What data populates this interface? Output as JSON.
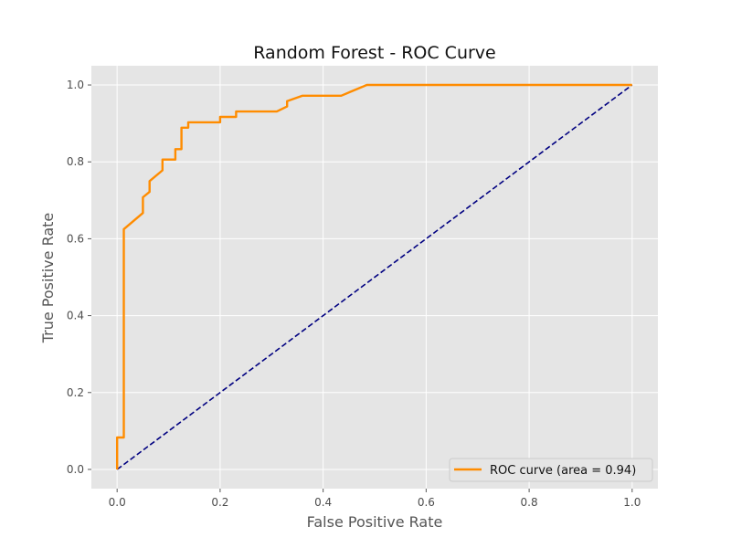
{
  "chart_data": {
    "type": "line",
    "title": "Random Forest - ROC Curve",
    "xlabel": "False Positive Rate",
    "ylabel": "True Positive Rate",
    "xlim": [
      -0.05,
      1.05
    ],
    "ylim": [
      -0.05,
      1.05
    ],
    "x_ticks": [
      "0.0",
      "0.2",
      "0.4",
      "0.6",
      "0.8",
      "1.0"
    ],
    "y_ticks": [
      "0.0",
      "0.2",
      "0.4",
      "0.6",
      "0.8",
      "1.0"
    ],
    "grid": true,
    "legend_position": "lower-right",
    "series": [
      {
        "name": "ROC curve (area = 0.94)",
        "color": "#ff8c00",
        "style": "solid",
        "x": [
          0.0,
          0.0,
          0.013,
          0.013,
          0.05,
          0.05,
          0.063,
          0.063,
          0.088,
          0.088,
          0.113,
          0.113,
          0.125,
          0.125,
          0.138,
          0.138,
          0.2,
          0.2,
          0.231,
          0.231,
          0.31,
          0.33,
          0.33,
          0.36,
          0.435,
          0.485,
          1.0
        ],
        "y": [
          0.0,
          0.083,
          0.083,
          0.625,
          0.667,
          0.708,
          0.722,
          0.75,
          0.778,
          0.806,
          0.806,
          0.833,
          0.833,
          0.889,
          0.889,
          0.903,
          0.903,
          0.917,
          0.917,
          0.931,
          0.931,
          0.944,
          0.958,
          0.972,
          0.972,
          1.0,
          1.0
        ]
      },
      {
        "name": "",
        "color": "#000080",
        "style": "dashed",
        "x": [
          0.0,
          1.0
        ],
        "y": [
          0.0,
          1.0
        ]
      }
    ]
  }
}
